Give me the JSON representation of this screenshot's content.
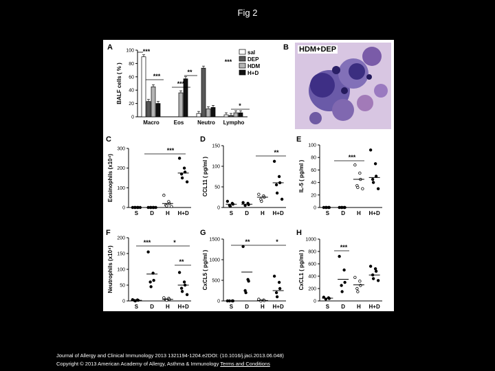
{
  "page": {
    "title": "Fig 2",
    "citation": "Journal of Allergy and Clinical Immunology 2013 1321194-1204.e2DOI: (10.1016/j.jaci.2013.06.048)",
    "copyright": "Copyright © 2013 American Academy of Allergy, Asthma & Immunology",
    "terms_link": "Terms and Conditions"
  },
  "colors": {
    "sal": "#ffffff",
    "DEP": "#585858",
    "HDM": "#b4b4b4",
    "H+D": "#111111",
    "line": "#000000"
  },
  "panel_b": {
    "letter": "B",
    "label": "HDM+DEP"
  },
  "chart_data": [
    {
      "panel": "A",
      "type": "bar",
      "ylabel": "BALF cells ( % )",
      "ylim": [
        0,
        100
      ],
      "yticks": [
        0,
        20,
        40,
        60,
        80,
        100
      ],
      "categories": [
        "Macro",
        "Eos",
        "Neutro",
        "Lympho"
      ],
      "series": [
        {
          "name": "sal",
          "values": [
            90,
            0,
            5,
            3
          ]
        },
        {
          "name": "DEP",
          "values": [
            23,
            0,
            73,
            2
          ]
        },
        {
          "name": "HDM",
          "values": [
            45,
            36,
            12,
            6
          ]
        },
        {
          "name": "H+D",
          "values": [
            20,
            57,
            14,
            6
          ]
        }
      ],
      "legend_position": "top-right",
      "annotations": [
        "***",
        "***",
        "***",
        "**",
        "***",
        "*"
      ]
    },
    {
      "panel": "C",
      "type": "scatter",
      "ylabel": "Eosinophils (x10⁴)",
      "ylim": [
        0,
        300
      ],
      "yticks": [
        0,
        100,
        200,
        300
      ],
      "categories": [
        "S",
        "D",
        "H",
        "H+D"
      ],
      "points": [
        [
          0,
          0,
          0,
          0,
          0,
          0
        ],
        [
          0,
          0,
          0,
          0,
          0,
          0
        ],
        [
          62,
          30,
          20,
          12,
          8,
          5
        ],
        [
          250,
          200,
          180,
          170,
          150,
          130
        ]
      ],
      "means": [
        0,
        0,
        20,
        175
      ],
      "annotations": [
        "***"
      ]
    },
    {
      "panel": "D",
      "type": "scatter",
      "ylabel": "CCL11 ( pg/ml )",
      "ylim": [
        0,
        150
      ],
      "yticks": [
        0,
        50,
        100,
        150
      ],
      "categories": [
        "S",
        "D",
        "H",
        "H+D"
      ],
      "points": [
        [
          15,
          10,
          8,
          5,
          3
        ],
        [
          12,
          10,
          7,
          5
        ],
        [
          32,
          28,
          25,
          20,
          15
        ],
        [
          112,
          75,
          60,
          55,
          35,
          20
        ]
      ],
      "means": [
        8,
        8,
        25,
        60
      ],
      "annotations": [
        "**"
      ]
    },
    {
      "panel": "E",
      "type": "scatter",
      "ylabel": "IL-5 ( pg/ml )",
      "ylim": [
        0,
        100
      ],
      "yticks": [
        0,
        20,
        40,
        60,
        80,
        100
      ],
      "categories": [
        "S",
        "D",
        "H",
        "H+D"
      ],
      "points": [
        [
          0,
          0,
          0,
          0,
          0
        ],
        [
          0,
          0,
          0,
          0,
          0
        ],
        [
          68,
          55,
          45,
          35,
          32,
          30
        ],
        [
          92,
          70,
          50,
          45,
          40,
          30
        ]
      ],
      "means": [
        0,
        0,
        45,
        48
      ],
      "annotations": [
        "***"
      ]
    },
    {
      "panel": "F",
      "type": "scatter",
      "ylabel": "Neutrophils (x10⁴)",
      "ylim": [
        0,
        200
      ],
      "yticks": [
        0,
        50,
        100,
        150,
        200
      ],
      "categories": [
        "S",
        "D",
        "H",
        "H+D"
      ],
      "points": [
        [
          4,
          3,
          2,
          1,
          0
        ],
        [
          155,
          88,
          65,
          60,
          45
        ],
        [
          10,
          8,
          5,
          3,
          2
        ],
        [
          90,
          60,
          50,
          40,
          30,
          20
        ]
      ],
      "means": [
        2,
        85,
        5,
        50
      ],
      "annotations": [
        "***",
        "*",
        "**"
      ]
    },
    {
      "panel": "G",
      "type": "scatter",
      "ylabel": "CxCL5 ( pg/ml )",
      "ylim": [
        0,
        1500
      ],
      "yticks": [
        0,
        500,
        1000,
        1500
      ],
      "categories": [
        "S",
        "D",
        "H",
        "H+D"
      ],
      "points": [
        [
          0,
          0,
          0,
          0
        ],
        [
          1320,
          520,
          480,
          250,
          200
        ],
        [
          40,
          20,
          10,
          0
        ],
        [
          600,
          450,
          300,
          200,
          100
        ]
      ],
      "means": [
        0,
        700,
        10,
        250
      ],
      "annotations": [
        "**",
        "*"
      ]
    },
    {
      "panel": "H",
      "type": "scatter",
      "ylabel": "CxCL1 ( pg/ml )",
      "ylim": [
        0,
        1000
      ],
      "yticks": [
        0,
        200,
        400,
        600,
        800,
        1000
      ],
      "categories": [
        "S",
        "D",
        "H",
        "H+D"
      ],
      "points": [
        [
          60,
          50,
          40,
          30
        ],
        [
          720,
          500,
          300,
          250,
          150
        ],
        [
          380,
          320,
          250,
          200,
          150
        ],
        [
          560,
          520,
          480,
          420,
          360,
          330
        ]
      ],
      "means": [
        45,
        350,
        260,
        420
      ],
      "annotations": [
        "***"
      ]
    }
  ]
}
